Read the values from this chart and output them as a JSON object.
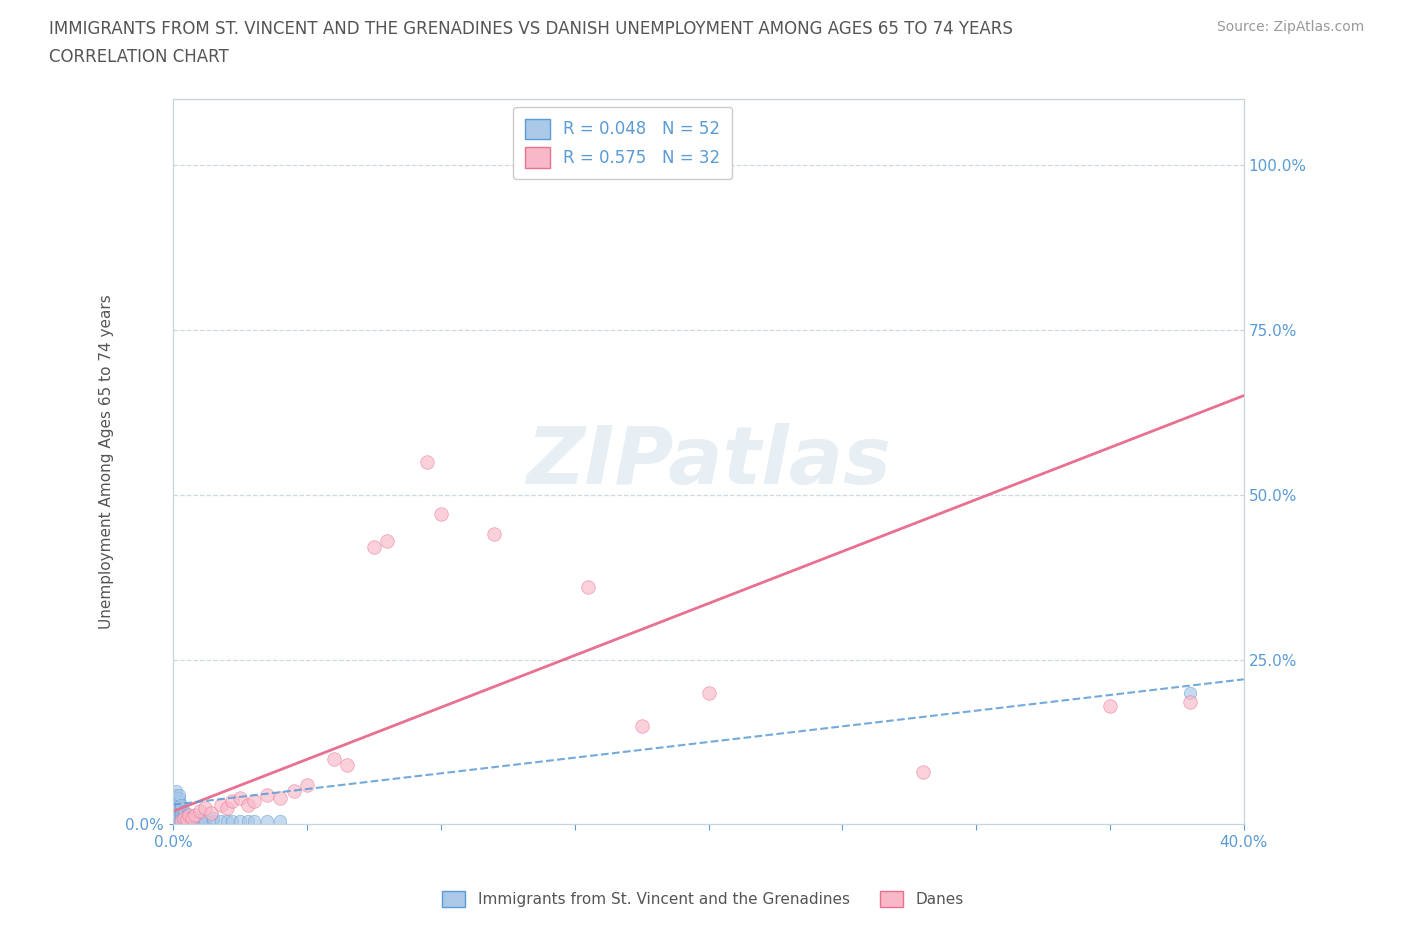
{
  "title_line1": "IMMIGRANTS FROM ST. VINCENT AND THE GRENADINES VS DANISH UNEMPLOYMENT AMONG AGES 65 TO 74 YEARS",
  "title_line2": "CORRELATION CHART",
  "source": "Source: ZipAtlas.com",
  "ylabel": "Unemployment Among Ages 65 to 74 years",
  "blue_R": 0.048,
  "blue_N": 52,
  "pink_R": 0.575,
  "pink_N": 32,
  "blue_color": "#aac8e8",
  "pink_color": "#f8b8c8",
  "blue_edge_color": "#5b9bd5",
  "pink_edge_color": "#e87090",
  "blue_trend_color": "#5b9bd5",
  "pink_trend_color": "#e87090",
  "legend_blue_label": "Immigrants from St. Vincent and the Grenadines",
  "legend_pink_label": "Danes",
  "watermark_text": "ZIPatlas",
  "blue_points_x": [
    0.001,
    0.001,
    0.001,
    0.001,
    0.001,
    0.001,
    0.001,
    0.001,
    0.001,
    0.001,
    0.002,
    0.002,
    0.002,
    0.002,
    0.002,
    0.002,
    0.002,
    0.002,
    0.002,
    0.003,
    0.003,
    0.003,
    0.003,
    0.003,
    0.003,
    0.004,
    0.004,
    0.004,
    0.004,
    0.005,
    0.005,
    0.005,
    0.006,
    0.006,
    0.007,
    0.007,
    0.008,
    0.009,
    0.01,
    0.01,
    0.012,
    0.015,
    0.015,
    0.018,
    0.02,
    0.022,
    0.025,
    0.028,
    0.03,
    0.035,
    0.04,
    0.38
  ],
  "blue_points_y": [
    0.005,
    0.01,
    0.015,
    0.02,
    0.025,
    0.03,
    0.035,
    0.04,
    0.045,
    0.05,
    0.005,
    0.01,
    0.015,
    0.02,
    0.025,
    0.03,
    0.035,
    0.04,
    0.045,
    0.005,
    0.01,
    0.015,
    0.02,
    0.025,
    0.03,
    0.005,
    0.01,
    0.015,
    0.02,
    0.005,
    0.01,
    0.015,
    0.005,
    0.01,
    0.005,
    0.01,
    0.005,
    0.005,
    0.005,
    0.01,
    0.005,
    0.005,
    0.01,
    0.005,
    0.005,
    0.005,
    0.005,
    0.005,
    0.005,
    0.005,
    0.005,
    0.2
  ],
  "pink_points_x": [
    0.003,
    0.004,
    0.005,
    0.006,
    0.007,
    0.008,
    0.01,
    0.012,
    0.014,
    0.018,
    0.02,
    0.022,
    0.025,
    0.028,
    0.03,
    0.035,
    0.04,
    0.045,
    0.05,
    0.06,
    0.065,
    0.075,
    0.08,
    0.095,
    0.1,
    0.12,
    0.155,
    0.175,
    0.2,
    0.28,
    0.35,
    0.38
  ],
  "pink_points_y": [
    0.005,
    0.01,
    0.008,
    0.015,
    0.01,
    0.015,
    0.02,
    0.025,
    0.018,
    0.03,
    0.025,
    0.035,
    0.04,
    0.03,
    0.035,
    0.045,
    0.04,
    0.05,
    0.06,
    0.1,
    0.09,
    0.42,
    0.43,
    0.55,
    0.47,
    0.44,
    0.36,
    0.15,
    0.2,
    0.08,
    0.18,
    0.185
  ],
  "pink_trend_x0": 0.0,
  "pink_trend_y0": 0.02,
  "pink_trend_x1": 0.4,
  "pink_trend_y1": 0.65,
  "blue_trend_x0": 0.0,
  "blue_trend_y0": 0.03,
  "blue_trend_x1": 0.4,
  "blue_trend_y1": 0.22,
  "xlim": [
    0.0,
    0.4
  ],
  "ylim": [
    0.0,
    1.1
  ],
  "xtick_positions": [
    0.0,
    0.05,
    0.1,
    0.15,
    0.2,
    0.25,
    0.3,
    0.35,
    0.4
  ],
  "xtick_labels": [
    "0.0%",
    "",
    "",
    "",
    "",
    "",
    "",
    "",
    "40.0%"
  ],
  "left_ytick_pos": [
    0.0
  ],
  "left_ytick_labels": [
    "0.0%"
  ],
  "right_ytick_pos": [
    0.25,
    0.5,
    0.75,
    1.0
  ],
  "right_ytick_labels": [
    "25.0%",
    "50.0%",
    "75.0%",
    "100.0%"
  ],
  "grid_color": "#c8d4dc",
  "background_color": "#ffffff",
  "title_color": "#555555",
  "axis_tick_color": "#5b9bd5",
  "marker_size": 80,
  "title_fontsize": 12,
  "tick_fontsize": 11,
  "ylabel_fontsize": 11,
  "legend_fontsize": 12,
  "source_fontsize": 10
}
